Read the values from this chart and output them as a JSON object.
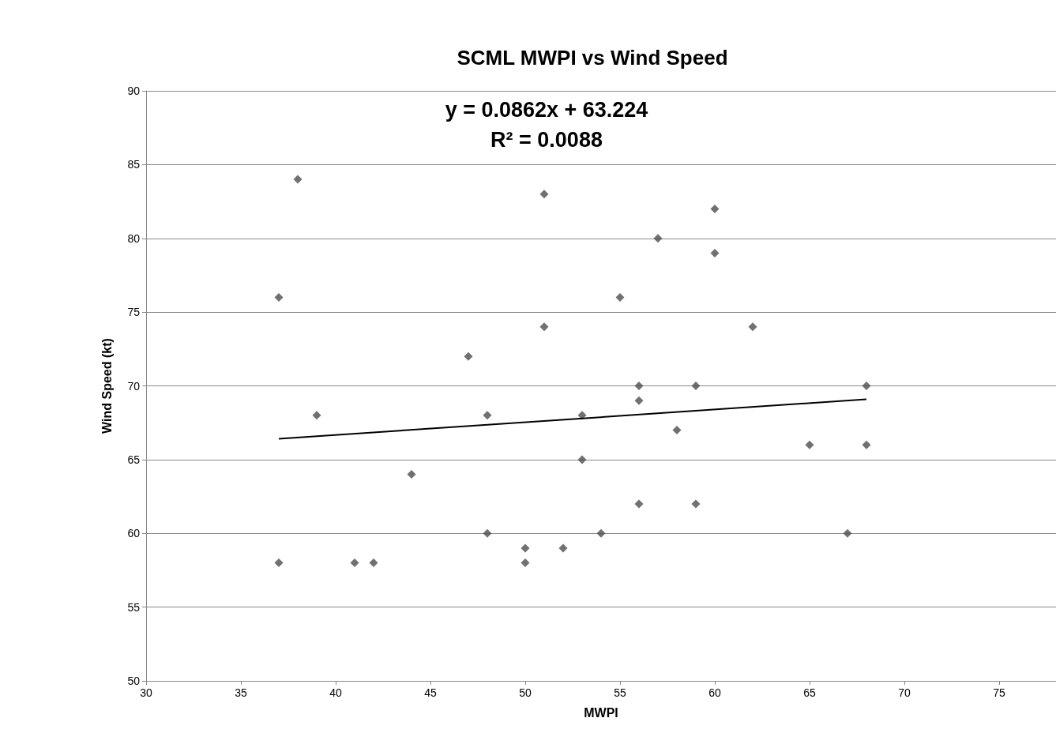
{
  "chart_data": {
    "type": "scatter",
    "title": "SCML MWPI vs Wind Speed",
    "xlabel": "MWPI",
    "ylabel": "Wind Speed (kt)",
    "annotations": [
      "y = 0.0862x + 63.224",
      "R² = 0.0088"
    ],
    "xlim": [
      30,
      78
    ],
    "xticks": [
      30,
      35,
      40,
      45,
      50,
      55,
      60,
      65,
      70,
      75
    ],
    "ylim": [
      50,
      90
    ],
    "yticks": [
      50,
      55,
      60,
      65,
      70,
      75,
      80,
      85,
      90
    ],
    "grid": "y",
    "marker": "diamond",
    "series": [
      {
        "color": "#4d4d4d",
        "x": [
          37,
          38,
          37,
          39,
          41,
          42,
          44,
          47,
          48,
          48,
          50,
          50,
          51,
          51,
          52,
          53,
          53,
          54,
          55,
          56,
          56,
          56,
          57,
          58,
          59,
          59,
          60,
          60,
          62,
          65,
          67,
          68,
          68
        ],
        "values": [
          76,
          84,
          58,
          68,
          58,
          58,
          64,
          72,
          68,
          60,
          59,
          58,
          83,
          74,
          59,
          68,
          65,
          60,
          76,
          70,
          69,
          62,
          80,
          67,
          70,
          62,
          82,
          79,
          74,
          66,
          60,
          70,
          66
        ]
      },
      {
        "type": "line",
        "color": "#000000",
        "marker": "none",
        "line_style": "solid",
        "x": [
          37,
          68
        ],
        "values": [
          66.41,
          69.09
        ]
      }
    ]
  }
}
